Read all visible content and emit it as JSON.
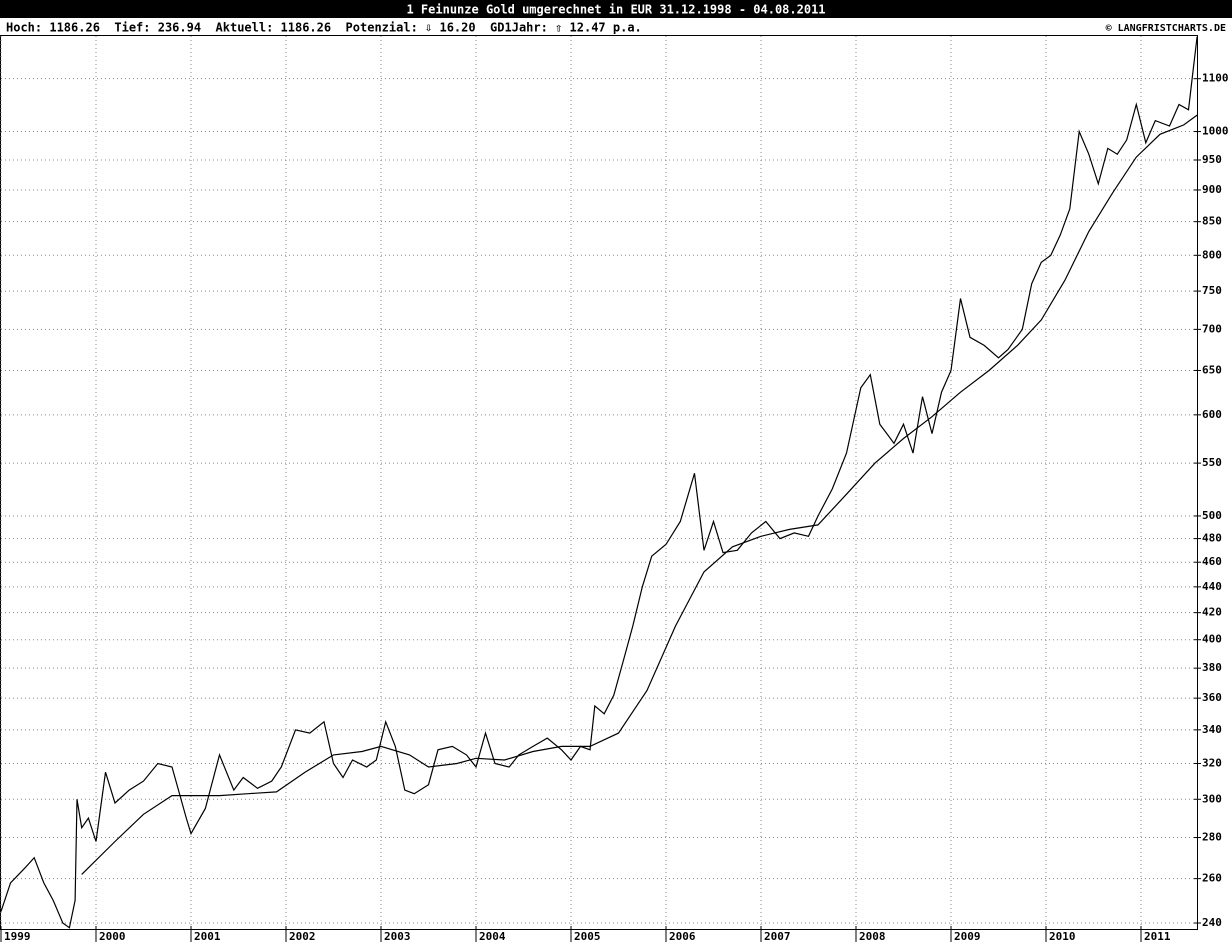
{
  "chart_data": {
    "type": "line",
    "title": "1 Feinunze Gold umgerechnet in EUR 31.12.1998 - 04.08.2011",
    "stats": "Hoch: 1186.26  Tief: 236.94  Aktuell: 1186.26  Potenzial: ⇩ 16.20  GD1Jahr: ⇧ 12.47 p.a.",
    "source": "© LANGFRISTCHARTS.DE",
    "log_scale": true,
    "grid": true,
    "xlim": [
      1999,
      2011.6
    ],
    "xticks": [
      1999,
      2000,
      2001,
      2002,
      2003,
      2004,
      2005,
      2006,
      2007,
      2008,
      2009,
      2010,
      2011
    ],
    "ylim": [
      237,
      1188
    ],
    "yticks": [
      240,
      260,
      280,
      300,
      320,
      340,
      360,
      380,
      400,
      420,
      440,
      460,
      480,
      500,
      550,
      600,
      650,
      700,
      750,
      800,
      850,
      900,
      950,
      1000,
      1100
    ],
    "series": [
      {
        "color": "#000000",
        "x": [
          1999.0,
          1999.1,
          1999.25,
          1999.35,
          1999.45,
          1999.55,
          1999.65,
          1999.72,
          1999.78,
          1999.8,
          1999.85,
          1999.92,
          2000.0,
          2000.1,
          2000.2,
          2000.35,
          2000.5,
          2000.65,
          2000.8,
          2000.95,
          2001.0,
          2001.15,
          2001.3,
          2001.45,
          2001.55,
          2001.7,
          2001.85,
          2001.95,
          2002.1,
          2002.25,
          2002.4,
          2002.5,
          2002.6,
          2002.7,
          2002.85,
          2002.95,
          2003.05,
          2003.15,
          2003.25,
          2003.35,
          2003.5,
          2003.6,
          2003.75,
          2003.9,
          2004.0,
          2004.1,
          2004.2,
          2004.35,
          2004.45,
          2004.6,
          2004.75,
          2004.9,
          2005.0,
          2005.1,
          2005.2,
          2005.25,
          2005.35,
          2005.45,
          2005.55,
          2005.65,
          2005.75,
          2005.85,
          2006.0,
          2006.15,
          2006.3,
          2006.4,
          2006.5,
          2006.6,
          2006.75,
          2006.9,
          2007.05,
          2007.2,
          2007.35,
          2007.5,
          2007.6,
          2007.75,
          2007.9,
          2008.05,
          2008.15,
          2008.25,
          2008.4,
          2008.5,
          2008.6,
          2008.7,
          2008.8,
          2008.9,
          2009.0,
          2009.1,
          2009.2,
          2009.35,
          2009.5,
          2009.6,
          2009.75,
          2009.85,
          2009.95,
          2010.05,
          2010.15,
          2010.25,
          2010.35,
          2010.45,
          2010.55,
          2010.65,
          2010.75,
          2010.85,
          2010.95,
          2011.05,
          2011.15,
          2011.3,
          2011.4,
          2011.5,
          2011.55,
          2011.59
        ],
        "values": [
          245,
          258,
          265,
          270,
          258,
          250,
          240,
          238,
          250,
          300,
          285,
          290,
          278,
          315,
          298,
          305,
          310,
          320,
          318,
          290,
          282,
          295,
          325,
          305,
          312,
          306,
          310,
          318,
          340,
          338,
          345,
          320,
          312,
          322,
          318,
          322,
          345,
          330,
          305,
          303,
          308,
          328,
          330,
          325,
          318,
          338,
          320,
          318,
          325,
          330,
          335,
          328,
          322,
          330,
          328,
          355,
          350,
          362,
          385,
          410,
          440,
          465,
          475,
          495,
          540,
          470,
          495,
          468,
          470,
          485,
          495,
          480,
          485,
          482,
          500,
          525,
          560,
          630,
          645,
          590,
          570,
          590,
          560,
          620,
          580,
          625,
          650,
          740,
          690,
          680,
          665,
          675,
          700,
          760,
          790,
          800,
          830,
          870,
          1000,
          960,
          910,
          970,
          960,
          985,
          1050,
          980,
          1020,
          1010,
          1050,
          1040,
          1120,
          1186.26
        ]
      },
      {
        "color": "#000000",
        "x": [
          1999.85,
          2000.2,
          2000.5,
          2000.8,
          2001.0,
          2001.3,
          2001.6,
          2001.9,
          2002.2,
          2002.5,
          2002.8,
          2003.0,
          2003.3,
          2003.5,
          2003.8,
          2004.0,
          2004.3,
          2004.6,
          2004.9,
          2005.2,
          2005.5,
          2005.8,
          2006.1,
          2006.4,
          2006.7,
          2007.0,
          2007.3,
          2007.6,
          2007.9,
          2008.2,
          2008.5,
          2008.8,
          2009.1,
          2009.4,
          2009.7,
          2009.95,
          2010.2,
          2010.45,
          2010.7,
          2010.95,
          2011.2,
          2011.45,
          2011.59
        ],
        "values": [
          262,
          278,
          292,
          302,
          302,
          302,
          303,
          304,
          315,
          325,
          327,
          330,
          325,
          318,
          320,
          323,
          322,
          327,
          330,
          330,
          338,
          365,
          410,
          452,
          473,
          482,
          488,
          492,
          520,
          550,
          575,
          598,
          625,
          650,
          680,
          712,
          765,
          835,
          895,
          955,
          995,
          1012,
          1030
        ]
      }
    ]
  }
}
